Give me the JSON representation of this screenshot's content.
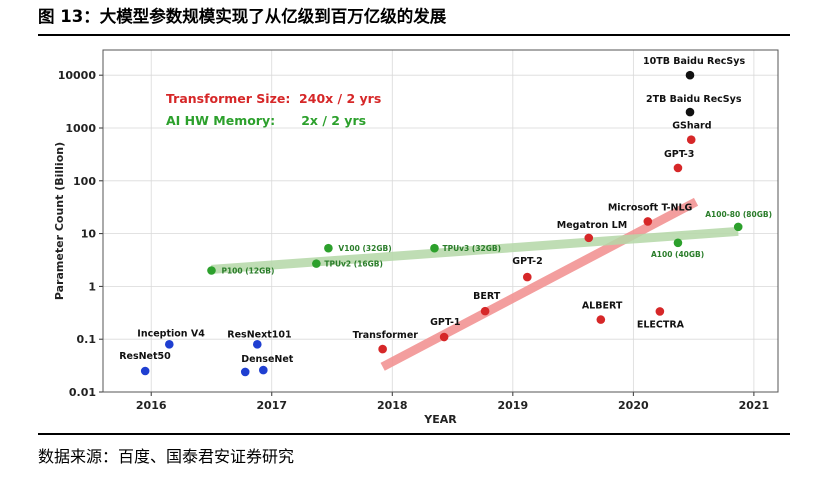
{
  "figure": {
    "title": "图 13：大模型参数规模实现了从亿级到百万亿级的发展",
    "source": "数据来源：百度、国泰君安证券研究"
  },
  "chart_data": {
    "type": "scatter",
    "title": "",
    "xlabel": "YEAR",
    "ylabel": "Parameter Count (Billion)",
    "x_scale": "linear",
    "y_scale": "log",
    "xlim": [
      2015.6,
      2021.2
    ],
    "ylim": [
      0.01,
      30000
    ],
    "grid": true,
    "x_ticks": [
      "2016",
      "2017",
      "2018",
      "2019",
      "2020",
      "2021"
    ],
    "y_ticks": [
      "0.01",
      "0.1",
      "1",
      "10",
      "100",
      "1000",
      "10000"
    ],
    "annotations": [
      {
        "text": "Transformer Size:  240x / 2 yrs",
        "color": "#d62728"
      },
      {
        "text": "AI HW Memory:      2x / 2 yrs",
        "color": "#2ca02c"
      }
    ],
    "series": [
      {
        "color": "#1f3fd1",
        "points": [
          {
            "label": "ResNet50",
            "x": 2015.95,
            "y": 0.025
          },
          {
            "label": "Inception V4",
            "x": 2016.15,
            "y": 0.08
          },
          {
            "label": "ResNext101",
            "x": 2016.88,
            "y": 0.08
          },
          {
            "label": "DenseNet",
            "x": 2016.78,
            "y": 0.024
          },
          {
            "label": "",
            "x": 2016.93,
            "y": 0.026
          }
        ]
      },
      {
        "color": "#d62728",
        "points": [
          {
            "label": "Transformer",
            "x": 2017.92,
            "y": 0.065
          },
          {
            "label": "GPT-1",
            "x": 2018.43,
            "y": 0.11
          },
          {
            "label": "BERT",
            "x": 2018.77,
            "y": 0.34
          },
          {
            "label": "GPT-2",
            "x": 2019.12,
            "y": 1.5
          },
          {
            "label": "Megatron LM",
            "x": 2019.63,
            "y": 8.3
          },
          {
            "label": "ALBERT",
            "x": 2019.73,
            "y": 0.235
          },
          {
            "label": "Microsoft T-NLG",
            "x": 2020.12,
            "y": 17
          },
          {
            "label": "ELECTRA",
            "x": 2020.22,
            "y": 0.335
          },
          {
            "label": "GPT-3",
            "x": 2020.37,
            "y": 175
          },
          {
            "label": "GShard",
            "x": 2020.48,
            "y": 600
          }
        ]
      },
      {
        "color": "#111111",
        "points": [
          {
            "label": "2TB Baidu RecSys",
            "x": 2020.47,
            "y": 2000
          },
          {
            "label": "10TB Baidu RecSys",
            "x": 2020.47,
            "y": 10000
          }
        ]
      },
      {
        "color": "#2ca02c",
        "points": [
          {
            "label": "P100 (12GB)",
            "x": 2016.5,
            "y": 2
          },
          {
            "label": "TPUv2 (16GB)",
            "x": 2017.37,
            "y": 2.7
          },
          {
            "label": "V100 (32GB)",
            "x": 2017.47,
            "y": 5.3
          },
          {
            "label": "TPUv3 (32GB)",
            "x": 2018.35,
            "y": 5.3
          },
          {
            "label": "A100 (40GB)",
            "x": 2020.37,
            "y": 6.7
          },
          {
            "label": "A100-80 (80GB)",
            "x": 2020.87,
            "y": 13.4
          }
        ]
      }
    ],
    "trend_lines": [
      {
        "color": "#f28e8e",
        "from": [
          2017.92,
          0.03
        ],
        "to": [
          2020.52,
          40
        ]
      },
      {
        "color": "#b5d8a8",
        "from": [
          2016.5,
          2.1
        ],
        "to": [
          2020.87,
          11
        ]
      }
    ]
  }
}
